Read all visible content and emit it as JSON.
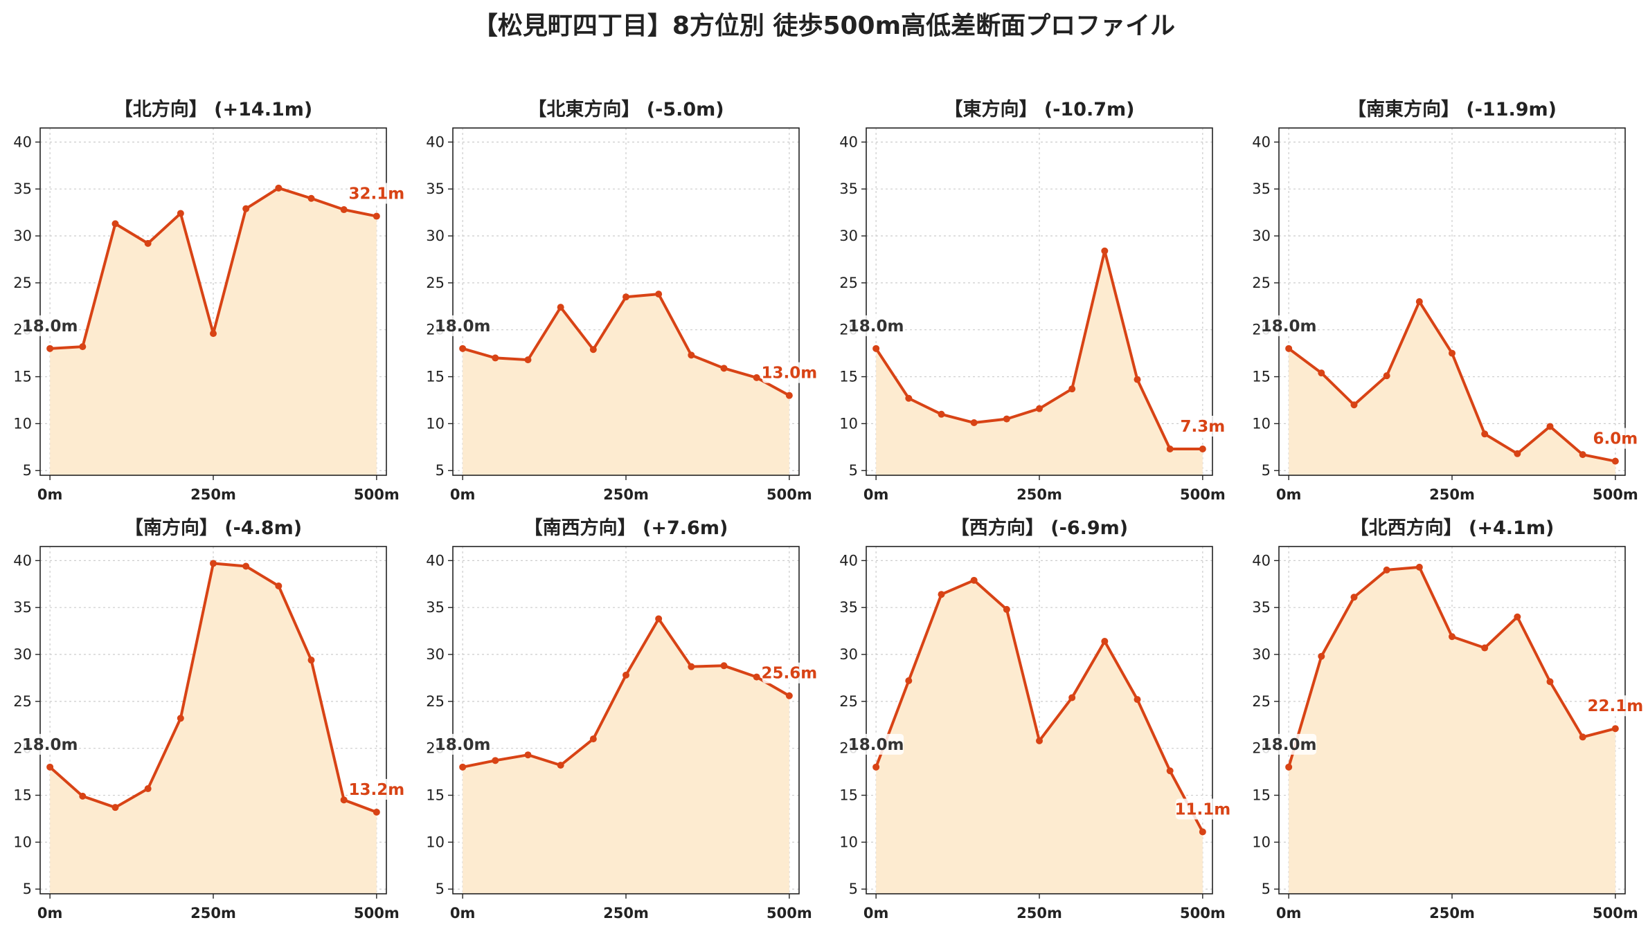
{
  "title": "【松見町四丁目】8方位別 徒歩500m高低差断面プロファイル",
  "colors": {
    "line": "#d84315",
    "fill": "#fdebd0",
    "grid": "#cccccc",
    "axis": "#222222"
  },
  "chart_data": [
    {
      "type": "area",
      "title": "【北方向】 (+14.1m)",
      "x": [
        0,
        50,
        100,
        150,
        200,
        250,
        300,
        350,
        400,
        450,
        500
      ],
      "y": [
        18.0,
        18.2,
        31.3,
        29.2,
        32.4,
        19.6,
        32.9,
        35.1,
        34.0,
        32.8,
        32.1
      ],
      "start_label": "18.0m",
      "end_label": "32.1m",
      "x_ticks": [
        "0m",
        "250m",
        "500m"
      ],
      "y_ticks": [
        5,
        10,
        15,
        20,
        25,
        30,
        35,
        40
      ],
      "ylim": [
        4.5,
        41.5
      ],
      "grid": true
    },
    {
      "type": "area",
      "title": "【北東方向】 (-5.0m)",
      "x": [
        0,
        50,
        100,
        150,
        200,
        250,
        300,
        350,
        400,
        450,
        500
      ],
      "y": [
        18.0,
        17.0,
        16.8,
        22.4,
        17.9,
        23.5,
        23.8,
        17.3,
        15.9,
        14.9,
        13.0
      ],
      "start_label": "18.0m",
      "end_label": "13.0m",
      "x_ticks": [
        "0m",
        "250m",
        "500m"
      ],
      "y_ticks": [
        5,
        10,
        15,
        20,
        25,
        30,
        35,
        40
      ],
      "ylim": [
        4.5,
        41.5
      ],
      "grid": true
    },
    {
      "type": "area",
      "title": "【東方向】 (-10.7m)",
      "x": [
        0,
        50,
        100,
        150,
        200,
        250,
        300,
        350,
        400,
        450,
        500
      ],
      "y": [
        18.0,
        12.7,
        11.0,
        10.1,
        10.5,
        11.6,
        13.7,
        28.4,
        14.7,
        7.3,
        7.3
      ],
      "start_label": "18.0m",
      "end_label": "7.3m",
      "x_ticks": [
        "0m",
        "250m",
        "500m"
      ],
      "y_ticks": [
        5,
        10,
        15,
        20,
        25,
        30,
        35,
        40
      ],
      "ylim": [
        4.5,
        41.5
      ],
      "grid": true
    },
    {
      "type": "area",
      "title": "【南東方向】 (-11.9m)",
      "x": [
        0,
        50,
        100,
        150,
        200,
        250,
        300,
        350,
        400,
        450,
        500
      ],
      "y": [
        18.0,
        15.4,
        12.0,
        15.1,
        23.0,
        17.5,
        8.9,
        6.8,
        9.7,
        6.7,
        6.0
      ],
      "start_label": "18.0m",
      "end_label": "6.0m",
      "x_ticks": [
        "0m",
        "250m",
        "500m"
      ],
      "y_ticks": [
        5,
        10,
        15,
        20,
        25,
        30,
        35,
        40
      ],
      "ylim": [
        4.5,
        41.5
      ],
      "grid": true
    },
    {
      "type": "area",
      "title": "【南方向】 (-4.8m)",
      "x": [
        0,
        50,
        100,
        150,
        200,
        250,
        300,
        350,
        400,
        450,
        500
      ],
      "y": [
        18.0,
        14.9,
        13.7,
        15.7,
        23.2,
        39.7,
        39.4,
        37.3,
        29.4,
        14.5,
        13.2
      ],
      "start_label": "18.0m",
      "end_label": "13.2m",
      "x_ticks": [
        "0m",
        "250m",
        "500m"
      ],
      "y_ticks": [
        5,
        10,
        15,
        20,
        25,
        30,
        35,
        40
      ],
      "ylim": [
        4.5,
        41.5
      ],
      "grid": true
    },
    {
      "type": "area",
      "title": "【南西方向】 (+7.6m)",
      "x": [
        0,
        50,
        100,
        150,
        200,
        250,
        300,
        350,
        400,
        450,
        500
      ],
      "y": [
        18.0,
        18.7,
        19.3,
        18.2,
        21.0,
        27.8,
        33.8,
        28.7,
        28.8,
        27.6,
        25.6
      ],
      "start_label": "18.0m",
      "end_label": "25.6m",
      "x_ticks": [
        "0m",
        "250m",
        "500m"
      ],
      "y_ticks": [
        5,
        10,
        15,
        20,
        25,
        30,
        35,
        40
      ],
      "ylim": [
        4.5,
        41.5
      ],
      "grid": true
    },
    {
      "type": "area",
      "title": "【西方向】 (-6.9m)",
      "x": [
        0,
        50,
        100,
        150,
        200,
        250,
        300,
        350,
        400,
        450,
        500
      ],
      "y": [
        18.0,
        27.2,
        36.4,
        37.9,
        34.8,
        20.8,
        25.4,
        31.4,
        25.2,
        17.6,
        11.1
      ],
      "start_label": "18.0m",
      "end_label": "11.1m",
      "x_ticks": [
        "0m",
        "250m",
        "500m"
      ],
      "y_ticks": [
        5,
        10,
        15,
        20,
        25,
        30,
        35,
        40
      ],
      "ylim": [
        4.5,
        41.5
      ],
      "grid": true
    },
    {
      "type": "area",
      "title": "【北西方向】 (+4.1m)",
      "x": [
        0,
        50,
        100,
        150,
        200,
        250,
        300,
        350,
        400,
        450,
        500
      ],
      "y": [
        18.0,
        29.8,
        36.1,
        39.0,
        39.3,
        31.9,
        30.7,
        34.0,
        27.1,
        21.2,
        22.1
      ],
      "start_label": "18.0m",
      "end_label": "22.1m",
      "x_ticks": [
        "0m",
        "250m",
        "500m"
      ],
      "y_ticks": [
        5,
        10,
        15,
        20,
        25,
        30,
        35,
        40
      ],
      "ylim": [
        4.5,
        41.5
      ],
      "grid": true
    }
  ]
}
